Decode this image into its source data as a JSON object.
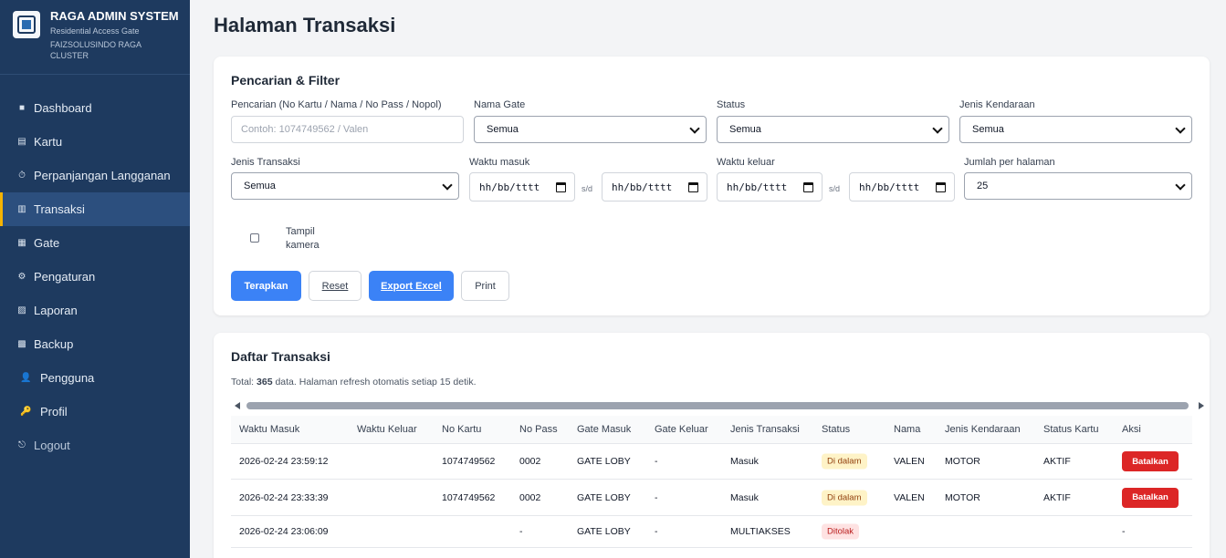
{
  "sidebar": {
    "title": "RAGA ADMIN SYSTEM",
    "subtitle": "Residential Access Gate",
    "org": "FAIZSOLUSINDO RAGA CLUSTER",
    "items": [
      {
        "label": "Dashboard",
        "icon": "■"
      },
      {
        "label": "Kartu",
        "icon": "▤"
      },
      {
        "label": "Perpanjangan Langganan",
        "icon": "⏱"
      },
      {
        "label": "Transaksi",
        "icon": "▥"
      },
      {
        "label": "Gate",
        "icon": "▦"
      },
      {
        "label": "Pengaturan",
        "icon": "⚙"
      },
      {
        "label": "Laporan",
        "icon": "▨"
      },
      {
        "label": "Backup",
        "icon": "▩"
      },
      {
        "label": "Pengguna",
        "icon": "👤"
      },
      {
        "label": "Profil",
        "icon": "🔑"
      },
      {
        "label": "Logout",
        "icon": "⎋"
      }
    ],
    "active_index": 3
  },
  "page": {
    "title": "Halaman Transaksi"
  },
  "filter": {
    "title": "Pencarian & Filter",
    "search_label": "Pencarian (No Kartu / Nama / No Pass / Nopol)",
    "search_placeholder": "Contoh: 1074749562 / Valen",
    "gate_label": "Nama Gate",
    "gate_value": "Semua",
    "status_label": "Status",
    "status_value": "Semua",
    "vehicle_label": "Jenis Kendaraan",
    "vehicle_value": "Semua",
    "trx_type_label": "Jenis Transaksi",
    "trx_type_value": "Semua",
    "time_in_label": "Waktu masuk",
    "time_out_label": "Waktu keluar",
    "date_placeholder": "hh/bb/tttt",
    "range_sep": "s/d",
    "per_page_label": "Jumlah per halaman",
    "per_page_value": "25",
    "camera_label": "Tampil kamera",
    "buttons": {
      "apply": "Terapkan",
      "reset": "Reset",
      "export": "Export Excel",
      "print": "Print"
    }
  },
  "list": {
    "title": "Daftar Transaksi",
    "total_prefix": "Total: ",
    "total": "365",
    "total_suffix": " data. Halaman refresh otomatis setiap 15 detik.",
    "columns": [
      "Waktu Masuk",
      "Waktu Keluar",
      "No Kartu",
      "No Pass",
      "Gate Masuk",
      "Gate Keluar",
      "Jenis Transaksi",
      "Status",
      "Nama",
      "Jenis Kendaraan",
      "Status Kartu",
      "Aksi"
    ],
    "rows": [
      {
        "time_in": "2026-02-24 23:59:12",
        "time_out": "",
        "card": "1074749562",
        "pass": "0002",
        "gate_in": "GATE LOBY",
        "gate_out": "-",
        "type": "Masuk",
        "status": "Di dalam",
        "name": "VALEN",
        "vehicle": "MOTOR",
        "card_status": "AKTIF",
        "action": "Batalkan"
      },
      {
        "time_in": "2026-02-24 23:33:39",
        "time_out": "",
        "card": "1074749562",
        "pass": "0002",
        "gate_in": "GATE LOBY",
        "gate_out": "-",
        "type": "Masuk",
        "status": "Di dalam",
        "name": "VALEN",
        "vehicle": "MOTOR",
        "card_status": "AKTIF",
        "action": "Batalkan"
      },
      {
        "time_in": "2026-02-24 23:06:09",
        "time_out": "",
        "card": "",
        "pass": "-",
        "gate_in": "GATE LOBY",
        "gate_out": "-",
        "type": "MULTIAKSES",
        "status": "Ditolak",
        "name": "",
        "vehicle": "",
        "card_status": "",
        "action": "-"
      }
    ]
  },
  "colors": {
    "sidebar": "#1e3a5f",
    "active_accent": "#f5b301",
    "primary": "#3b82f6",
    "danger": "#dc2626"
  }
}
